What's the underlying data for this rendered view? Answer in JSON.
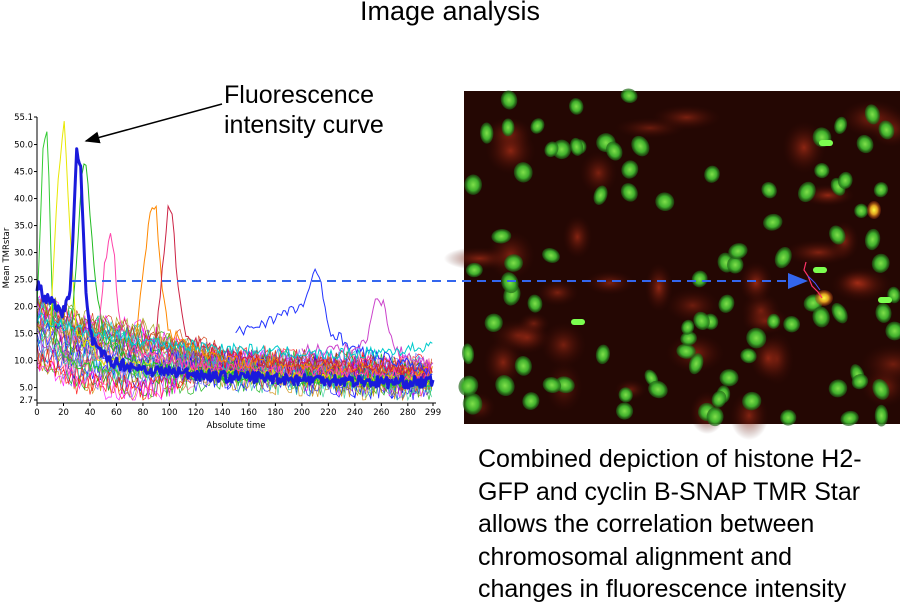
{
  "title": "Image analysis",
  "annotation": {
    "line1": "Fluorescence",
    "line2": "intensity curve"
  },
  "caption": "Combined depiction of histone H2-GFP and cyclin B-SNAP TMR Star allows the correlation between chromosomal alignment and changes in fluorescence intensity",
  "chart_data": {
    "type": "line",
    "xlabel": "Absolute time",
    "ylabel": "Mean TMRstar",
    "xlim": [
      0,
      299
    ],
    "ylim": [
      2.7,
      55.1
    ],
    "x_ticks": [
      "0",
      "20",
      "40",
      "60",
      "80",
      "100",
      "120",
      "140",
      "160",
      "180",
      "200",
      "220",
      "240",
      "260",
      "280",
      "299"
    ],
    "y_ticks": [
      "55.1",
      "50.0",
      "45.0",
      "40.0",
      "35.0",
      "30.0",
      "25.0",
      "20.0",
      "15.0",
      "10.0",
      "5.0",
      "2.7"
    ],
    "highlighted_series": {
      "color": "#1a1adc",
      "x": [
        0,
        5,
        10,
        15,
        20,
        25,
        30,
        33,
        37,
        40,
        45,
        50,
        60,
        70,
        80,
        90,
        100,
        120,
        140,
        160,
        180,
        200,
        220,
        240,
        260,
        280,
        299
      ],
      "y": [
        24,
        22,
        21,
        20,
        19,
        22,
        50,
        45,
        22,
        15,
        12,
        11,
        9.5,
        9,
        8.5,
        8,
        8,
        7.5,
        7,
        7,
        6.8,
        6.5,
        6.5,
        6.2,
        6,
        6,
        6
      ]
    },
    "background_series": [
      {
        "color": "#33cc33",
        "x": [
          0,
          5,
          8,
          12,
          15,
          20,
          40,
          80,
          150,
          299
        ],
        "y": [
          20,
          52,
          52,
          18,
          14,
          10,
          9,
          8,
          7,
          6
        ]
      },
      {
        "color": "#e8e800",
        "x": [
          10,
          15,
          20,
          22,
          26,
          30,
          50,
          100,
          200,
          299
        ],
        "y": [
          15,
          40,
          55,
          48,
          30,
          15,
          10,
          8,
          7,
          6
        ]
      },
      {
        "color": "#22bb22",
        "x": [
          25,
          30,
          35,
          38,
          42,
          50,
          80,
          150,
          299
        ],
        "y": [
          12,
          30,
          47,
          45,
          30,
          14,
          9,
          7,
          6
        ]
      },
      {
        "color": "#ff44aa",
        "x": [
          45,
          50,
          55,
          58,
          62,
          70,
          120,
          299
        ],
        "y": [
          10,
          25,
          35,
          30,
          18,
          12,
          9,
          7
        ]
      },
      {
        "color": "#ff8800",
        "x": [
          75,
          82,
          86,
          90,
          94,
          100,
          140,
          299
        ],
        "y": [
          15,
          30,
          39,
          38,
          25,
          15,
          10,
          8
        ]
      },
      {
        "color": "#cc2244",
        "x": [
          90,
          95,
          99,
          102,
          106,
          112,
          160,
          299
        ],
        "y": [
          15,
          28,
          39,
          38,
          25,
          14,
          10,
          8
        ]
      },
      {
        "color": "#2233ff",
        "x": [
          150,
          180,
          200,
          210,
          214,
          220,
          240,
          270,
          299
        ],
        "y": [
          15,
          18,
          20,
          26,
          25,
          16,
          12,
          10,
          8
        ]
      },
      {
        "color": "#cc44cc",
        "x": [
          200,
          240,
          250,
          256,
          262,
          270,
          290,
          299
        ],
        "y": [
          12,
          12,
          14,
          23,
          20,
          12,
          10,
          9
        ]
      },
      {
        "color": "#00cccc",
        "x": [
          0,
          40,
          100,
          160,
          220,
          280,
          299
        ],
        "y": [
          18,
          15,
          13,
          12,
          11,
          12,
          13
        ]
      }
    ]
  }
}
